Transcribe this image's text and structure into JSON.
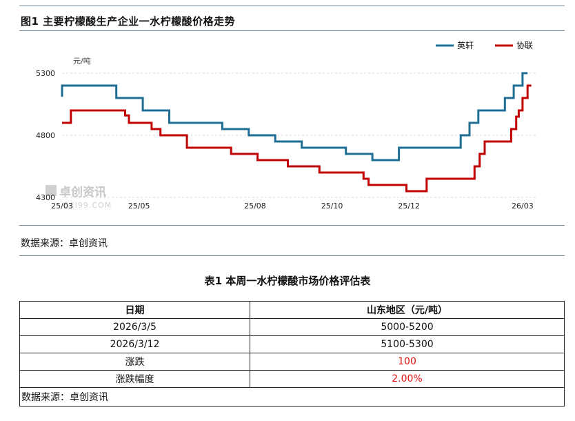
{
  "figure": {
    "title": "图1 主要柠檬酸生产企业一水柠檬酸价格走势",
    "source": "数据来源：卓创资讯"
  },
  "watermark": {
    "text": "卓创资讯",
    "sub": "SCI99.COM"
  },
  "chart_data": {
    "type": "line",
    "title": "图1 主要柠檬酸生产企业一水柠檬酸价格走势",
    "ylabel": "元/吨",
    "ylim": [
      4300,
      5300
    ],
    "yticks": [
      4300,
      4800,
      5300
    ],
    "xlim": [
      "2025-03-01",
      "2026-03-12"
    ],
    "xticks": [
      {
        "date": "2025-03-01",
        "label": "25/03"
      },
      {
        "date": "2025-05-01",
        "label": "25/05"
      },
      {
        "date": "2025-08-01",
        "label": "25/08"
      },
      {
        "date": "2025-10-01",
        "label": "25/10"
      },
      {
        "date": "2025-12-01",
        "label": "25/12"
      },
      {
        "date": "2026-03-01",
        "label": "26/03"
      }
    ],
    "legend": "top-right",
    "grid": {
      "horizontal": true,
      "style": "dashed"
    },
    "series": [
      {
        "name": "英轩",
        "color": "#1f6e94",
        "points": [
          [
            "2025-03-01",
            5110
          ],
          [
            "2025-03-01",
            5200
          ],
          [
            "2025-04-13",
            5200
          ],
          [
            "2025-04-13",
            5100
          ],
          [
            "2025-05-04",
            5100
          ],
          [
            "2025-05-04",
            5000
          ],
          [
            "2025-05-25",
            5000
          ],
          [
            "2025-05-25",
            4900
          ],
          [
            "2025-07-06",
            4900
          ],
          [
            "2025-07-06",
            4850
          ],
          [
            "2025-07-27",
            4850
          ],
          [
            "2025-07-27",
            4800
          ],
          [
            "2025-08-17",
            4800
          ],
          [
            "2025-08-17",
            4750
          ],
          [
            "2025-09-07",
            4750
          ],
          [
            "2025-09-07",
            4700
          ],
          [
            "2025-10-12",
            4700
          ],
          [
            "2025-10-12",
            4650
          ],
          [
            "2025-11-02",
            4650
          ],
          [
            "2025-11-02",
            4600
          ],
          [
            "2025-11-23",
            4600
          ],
          [
            "2025-11-23",
            4700
          ],
          [
            "2026-01-11",
            4700
          ],
          [
            "2026-01-11",
            4800
          ],
          [
            "2026-01-18",
            4800
          ],
          [
            "2026-01-18",
            4900
          ],
          [
            "2026-01-25",
            4900
          ],
          [
            "2026-01-25",
            5000
          ],
          [
            "2026-02-15",
            5000
          ],
          [
            "2026-02-15",
            5100
          ],
          [
            "2026-02-22",
            5100
          ],
          [
            "2026-02-22",
            5200
          ],
          [
            "2026-03-01",
            5200
          ],
          [
            "2026-03-01",
            5300
          ],
          [
            "2026-03-05",
            5300
          ]
        ]
      },
      {
        "name": "协联",
        "color": "#c00000",
        "points": [
          [
            "2025-03-01",
            4900
          ],
          [
            "2025-03-08",
            4900
          ],
          [
            "2025-03-08",
            5000
          ],
          [
            "2025-04-20",
            5000
          ],
          [
            "2025-04-20",
            4960
          ],
          [
            "2025-04-23",
            4960
          ],
          [
            "2025-04-23",
            4900
          ],
          [
            "2025-05-11",
            4900
          ],
          [
            "2025-05-11",
            4850
          ],
          [
            "2025-05-18",
            4850
          ],
          [
            "2025-05-18",
            4800
          ],
          [
            "2025-06-08",
            4800
          ],
          [
            "2025-06-08",
            4700
          ],
          [
            "2025-07-13",
            4700
          ],
          [
            "2025-07-13",
            4650
          ],
          [
            "2025-08-03",
            4650
          ],
          [
            "2025-08-03",
            4600
          ],
          [
            "2025-08-27",
            4600
          ],
          [
            "2025-08-27",
            4550
          ],
          [
            "2025-09-21",
            4550
          ],
          [
            "2025-09-21",
            4500
          ],
          [
            "2025-10-26",
            4500
          ],
          [
            "2025-10-26",
            4450
          ],
          [
            "2025-10-30",
            4450
          ],
          [
            "2025-10-30",
            4400
          ],
          [
            "2025-11-29",
            4400
          ],
          [
            "2025-11-29",
            4350
          ],
          [
            "2025-12-15",
            4350
          ],
          [
            "2025-12-15",
            4450
          ],
          [
            "2026-01-22",
            4450
          ],
          [
            "2026-01-22",
            4550
          ],
          [
            "2026-01-26",
            4550
          ],
          [
            "2026-01-26",
            4650
          ],
          [
            "2026-01-30",
            4650
          ],
          [
            "2026-01-30",
            4750
          ],
          [
            "2026-02-20",
            4750
          ],
          [
            "2026-02-20",
            4850
          ],
          [
            "2026-02-24",
            4850
          ],
          [
            "2026-02-24",
            4950
          ],
          [
            "2026-02-26",
            4950
          ],
          [
            "2026-02-26",
            5000
          ],
          [
            "2026-03-01",
            5000
          ],
          [
            "2026-03-01",
            5100
          ],
          [
            "2026-03-05",
            5100
          ],
          [
            "2026-03-05",
            5200
          ],
          [
            "2026-03-08",
            5200
          ]
        ]
      }
    ]
  },
  "table": {
    "title": "表1 本周一水柠檬酸市场价格评估表",
    "headers": [
      "日期",
      "山东地区（元/吨）"
    ],
    "rows": [
      [
        "2026/3/5",
        "5000-5200"
      ],
      [
        "2026/3/12",
        "5100-5300"
      ],
      [
        "涨跌",
        "100"
      ],
      [
        "涨跌幅度",
        "2.00%"
      ]
    ],
    "change_color": "#e01010",
    "source": "数据来源：卓创资讯"
  }
}
